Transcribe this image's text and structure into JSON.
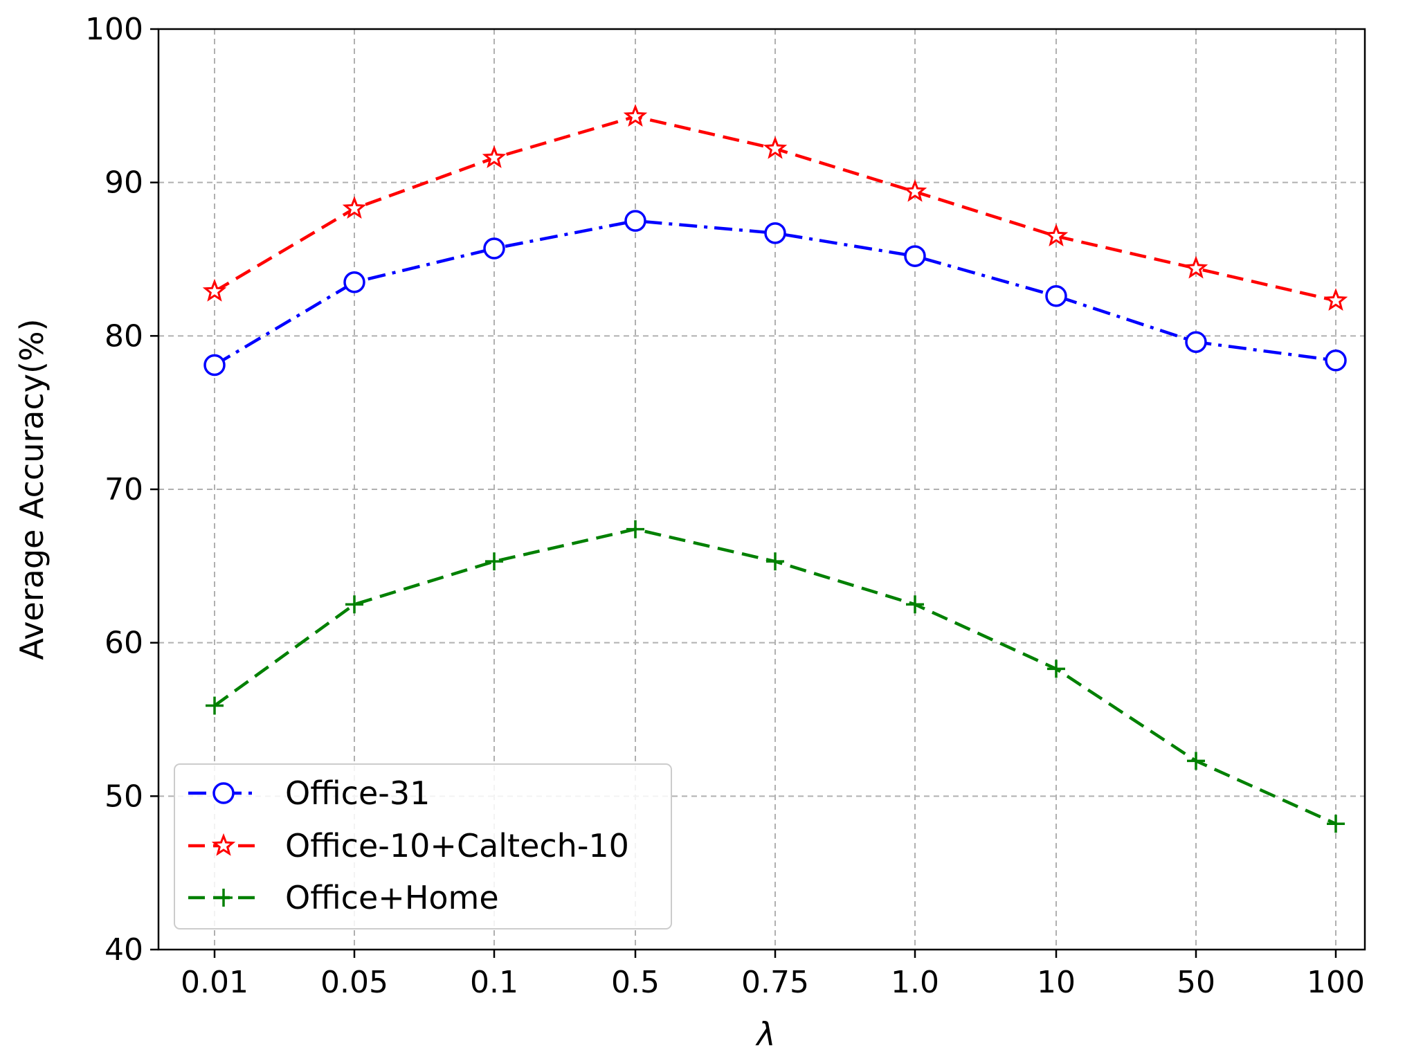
{
  "chart_data": {
    "type": "line",
    "categories": [
      "0.01",
      "0.05",
      "0.1",
      "0.5",
      "0.75",
      "1.0",
      "10",
      "50",
      "100"
    ],
    "xlabel": "λ",
    "ylabel": "Average Accuracy(%)",
    "ylim": [
      40,
      100
    ],
    "yticks": [
      "40",
      "50",
      "60",
      "70",
      "80",
      "90",
      "100"
    ],
    "grid": true,
    "legend_position": "lower-left",
    "series": [
      {
        "name": "Office-31",
        "values": [
          78.1,
          83.5,
          85.7,
          87.5,
          86.7,
          85.2,
          82.6,
          79.6,
          78.4
        ],
        "color": "#0000ff",
        "dash": "dashdot",
        "marker": "circle"
      },
      {
        "name": "Office-10+Caltech-10",
        "values": [
          82.9,
          88.3,
          91.6,
          94.3,
          92.2,
          89.4,
          86.5,
          84.4,
          82.3
        ],
        "color": "#ff0000",
        "dash": "dashed",
        "marker": "star"
      },
      {
        "name": "Office+Home",
        "values": [
          55.9,
          62.5,
          65.3,
          67.4,
          65.3,
          62.5,
          58.3,
          52.3,
          48.2
        ],
        "color": "#008000",
        "dash": "dashed",
        "marker": "plus"
      }
    ]
  }
}
